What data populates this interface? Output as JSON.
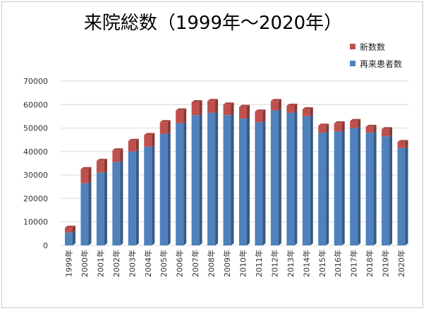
{
  "chart_data": {
    "type": "bar",
    "stacked": true,
    "title": "来院総数（1999年～2020年）",
    "xlabel": "",
    "ylabel": "",
    "ylim": [
      0,
      70000
    ],
    "yticks": [
      0,
      10000,
      20000,
      30000,
      40000,
      50000,
      60000,
      70000
    ],
    "grid": true,
    "legend_position": "top-right",
    "categories": [
      "1999年",
      "2000年",
      "2001年",
      "2002年",
      "2003年",
      "2004年",
      "2005年",
      "2006年",
      "2007年",
      "2008年",
      "2009年",
      "2010年",
      "2011年",
      "2012年",
      "2013年",
      "2014年",
      "2015年",
      "2016年",
      "2017年",
      "2018年",
      "2019年",
      "2020年"
    ],
    "series": [
      {
        "name": "再来患者数",
        "color": "#4f81bd",
        "values": [
          5500,
          26500,
          31000,
          35500,
          40000,
          42000,
          47500,
          52000,
          55500,
          56500,
          55500,
          54000,
          52500,
          57500,
          56500,
          55000,
          48000,
          48500,
          50000,
          48000,
          46500,
          41500
        ]
      },
      {
        "name": "新数数",
        "color": "#c0504d",
        "values": [
          2000,
          6000,
          5000,
          5000,
          4500,
          5000,
          5000,
          5500,
          5500,
          5000,
          4500,
          5000,
          4500,
          4000,
          3000,
          3000,
          3000,
          3500,
          3000,
          2500,
          3000,
          2500
        ]
      }
    ]
  }
}
